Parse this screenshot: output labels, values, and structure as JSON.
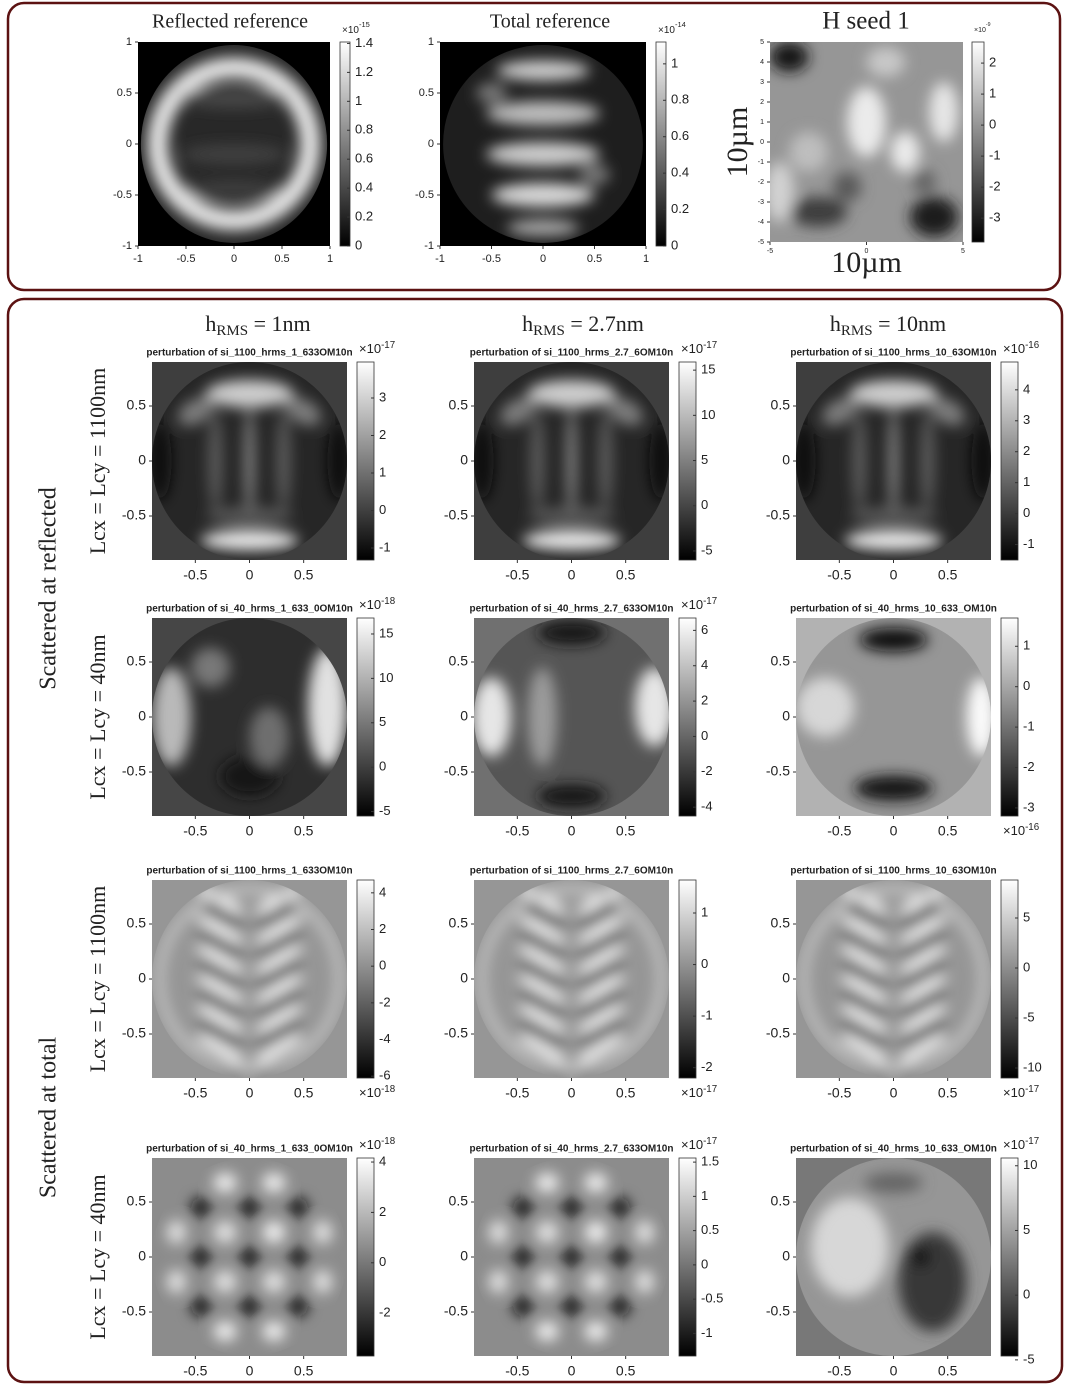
{
  "multiplier": "×10",
  "top": {
    "panels": [
      {
        "title": "Reflected reference",
        "lim": [
          -1,
          1
        ],
        "xticks": [
          -1,
          -0.5,
          0,
          0.5,
          1
        ],
        "yticks": [
          1,
          0.5,
          0,
          -0.5,
          -1
        ],
        "colorbar": {
          "lim": [
            0,
            1.41
          ],
          "ticks": [
            0,
            0.2,
            0.4,
            0.6,
            0.8,
            1,
            1.2,
            1.4
          ],
          "exponent": "-15"
        }
      },
      {
        "title": "Total reference",
        "lim": [
          -1,
          1
        ],
        "xticks": [
          -1,
          -0.5,
          0,
          0.5,
          1
        ],
        "yticks": [
          1,
          0.5,
          0,
          -0.5,
          -1
        ],
        "colorbar": {
          "lim": [
            0,
            1.12
          ],
          "ticks": [
            0,
            0.2,
            0.4,
            0.6,
            0.8,
            1
          ],
          "exponent": "-14"
        }
      },
      {
        "title": "H seed 1",
        "lim": [
          -5,
          5
        ],
        "xticks": [
          -5,
          0,
          5
        ],
        "yticks": [
          5,
          4,
          3,
          2,
          1,
          0,
          -1,
          -2,
          -3,
          -4,
          -5
        ],
        "xlabel": "10µm",
        "ylabel": "10µm",
        "colorbar": {
          "lim": [
            -3.77,
            2.68
          ],
          "ticks": [
            2,
            1,
            0,
            -1,
            -2,
            -3
          ],
          "exponent": "-9"
        }
      }
    ]
  },
  "bottom": {
    "columns": [
      {
        "symbol": "h",
        "subscript": "RMS",
        "text": " = 1nm"
      },
      {
        "symbol": "h",
        "subscript": "RMS",
        "text": " = 2.7nm"
      },
      {
        "symbol": "h",
        "subscript": "RMS",
        "text": " = 10nm"
      }
    ],
    "groups": [
      "Scattered at reflected",
      "Scattered at total"
    ],
    "rows": [
      "Lcx = Lcy = 1100nm",
      "Lcx = Lcy = 40nm",
      "Lcx = Lcy = 1100nm",
      "Lcx = Lcy = 40nm"
    ],
    "lim": [
      -0.9,
      0.9
    ],
    "xticks": [
      -0.5,
      0,
      0.5
    ],
    "yticks": [
      0.5,
      0,
      -0.5
    ],
    "panels": [
      [
        {
          "title": "perturbation of si_1100_hrms_1_633OM10n",
          "colorbar": {
            "lim": [
              -1.32,
              3.96
            ],
            "ticks": [
              -1,
              0,
              1,
              2,
              3
            ],
            "exponent": "-17",
            "exponent_at": "top"
          }
        },
        {
          "title": "perturbation of si_1100_hrms_2.7_6OM10n",
          "colorbar": {
            "lim": [
              -6.0,
              15.9
            ],
            "ticks": [
              -5,
              0,
              5,
              10,
              15
            ],
            "exponent": "-17",
            "exponent_at": "top"
          }
        },
        {
          "title": "perturbation of si_1100_hrms_10_63OM10n",
          "colorbar": {
            "lim": [
              -1.5,
              4.9
            ],
            "ticks": [
              -1,
              0,
              1,
              2,
              3,
              4
            ],
            "exponent": "-16",
            "exponent_at": "top"
          }
        }
      ],
      [
        {
          "title": "perturbation of si_40_hrms_1_633_0OM10n",
          "colorbar": {
            "lim": [
              -5.5,
              16.8
            ],
            "ticks": [
              -5,
              0,
              5,
              10,
              15
            ],
            "exponent": "-18",
            "exponent_at": "top"
          }
        },
        {
          "title": "perturbation of si_40_hrms_2.7_633OM10n",
          "colorbar": {
            "lim": [
              -4.5,
              6.7
            ],
            "ticks": [
              -4,
              -2,
              0,
              2,
              4,
              6
            ],
            "exponent": "-17",
            "exponent_at": "top"
          }
        },
        {
          "title": "perturbation of si_40_hrms_10_633_OM10n",
          "colorbar": {
            "lim": [
              -3.2,
              1.7
            ],
            "ticks": [
              -3,
              -2,
              -1,
              0,
              1
            ],
            "exponent": "-16",
            "exponent_at": "bottom"
          }
        }
      ],
      [
        {
          "title": "perturbation of si_1100_hrms_1_633OM10n",
          "colorbar": {
            "lim": [
              -6.1,
              4.7
            ],
            "ticks": [
              -6,
              -4,
              -2,
              0,
              2,
              4
            ],
            "exponent": "-18",
            "exponent_at": "bottom"
          }
        },
        {
          "title": "perturbation of si_1100_hrms_2.7_6OM10n",
          "colorbar": {
            "lim": [
              -2.2,
              1.64
            ],
            "ticks": [
              -2,
              -1,
              0,
              1
            ],
            "exponent": "-17",
            "exponent_at": "bottom"
          }
        },
        {
          "title": "perturbation of si_1100_hrms_10_63OM10n",
          "colorbar": {
            "lim": [
              -11,
              8.8
            ],
            "ticks": [
              -10,
              -5,
              0,
              5
            ],
            "exponent": "-17",
            "exponent_at": "bottom"
          }
        }
      ],
      [
        {
          "title": "perturbation of si_40_hrms_1_633_0OM10n",
          "colorbar": {
            "lim": [
              -3.7,
              4.16
            ],
            "ticks": [
              -2,
              0,
              2,
              4
            ],
            "exponent": "-18",
            "exponent_at": "top"
          }
        },
        {
          "title": "perturbation of si_40_hrms_2.7_633OM10n",
          "colorbar": {
            "lim": [
              -1.33,
              1.56
            ],
            "ticks": [
              -1,
              -0.5,
              0,
              0.5,
              1,
              1.5
            ],
            "exponent": "-17",
            "exponent_at": "top"
          }
        },
        {
          "title": "perturbation of si_40_hrms_10_633_OM10n",
          "colorbar": {
            "lim": [
              -4.7,
              10.6
            ],
            "ticks": [
              -5,
              0,
              5,
              10
            ],
            "exponent": "-17",
            "exponent_at": "top"
          }
        }
      ]
    ]
  }
}
